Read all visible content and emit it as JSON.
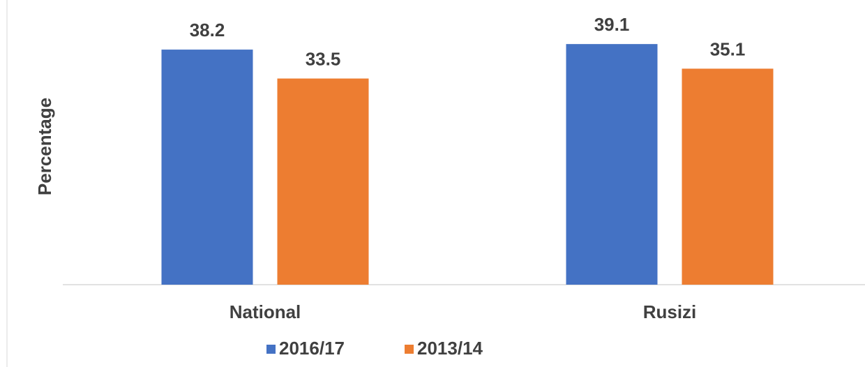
{
  "chart_data": {
    "type": "bar",
    "y_label": "Percentage",
    "categories": [
      "National",
      "Rusizi"
    ],
    "series": [
      {
        "name": "2016/17",
        "color": "#4472c4",
        "values": [
          38.2,
          39.1
        ]
      },
      {
        "name": "2013/14",
        "color": "#ed7d31",
        "values": [
          33.5,
          35.1
        ]
      }
    ]
  }
}
